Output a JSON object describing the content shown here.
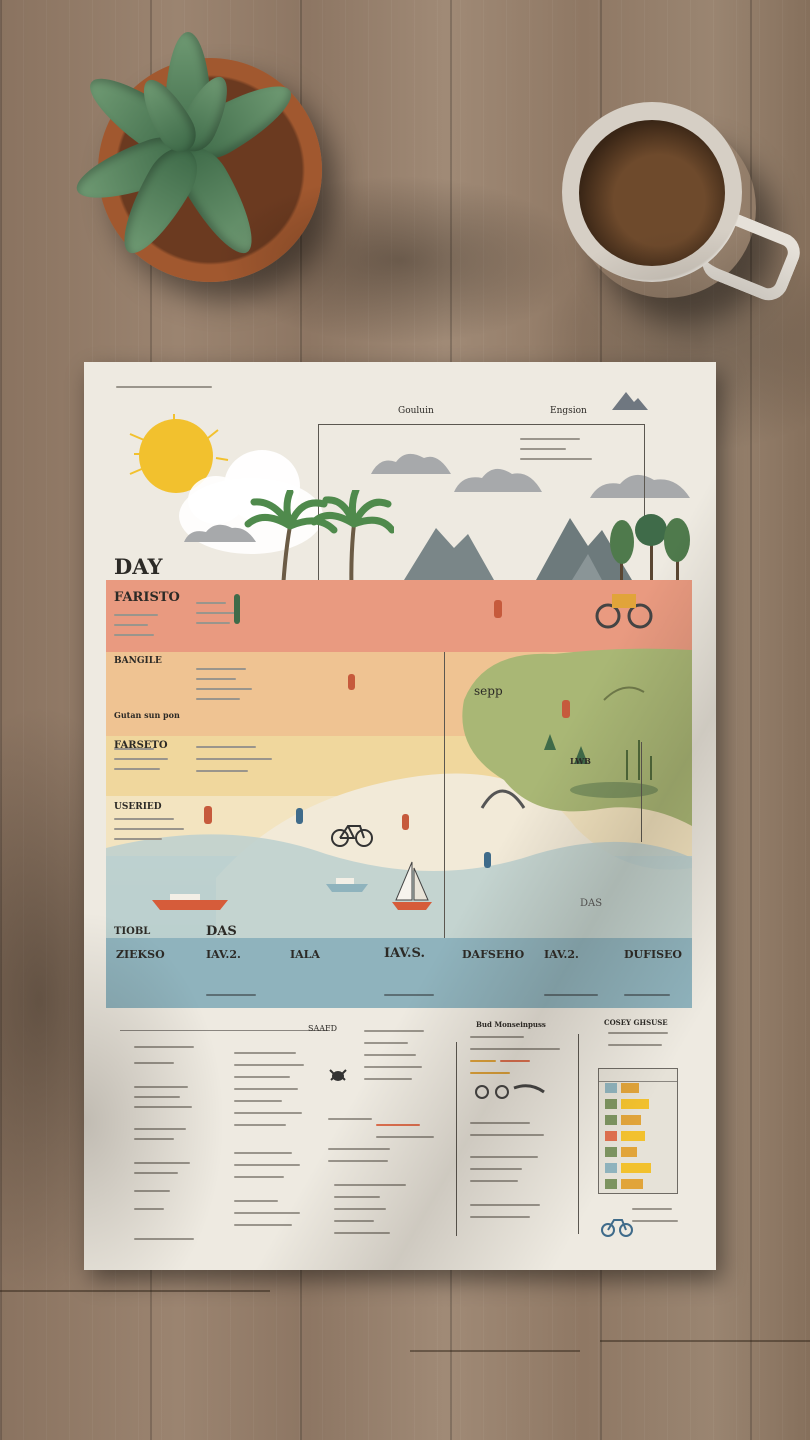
{
  "poster": {
    "day_title": "DAY",
    "zone_labels": [
      "FARISTO",
      "BANGILE",
      "Gutan sun pon",
      "FARSETO",
      "USERIED"
    ],
    "header_labels": [
      "Gouluin",
      "Engsion"
    ],
    "map_labels": [
      "sepp",
      "LWB",
      "DAS"
    ],
    "bottom_labels": [
      "TIOBL",
      "DAS",
      "ZIEKSO",
      "IAV.2.",
      "IALA",
      "IAV.S.",
      "DAFSEHO",
      "IAV.2.",
      "DUFISEO"
    ],
    "schedule_labels": [
      "SAAFD",
      "Bud Monseinpuss",
      "COSEY GHSUSE"
    ]
  },
  "palette": {
    "sun": "#f2c12e",
    "salmon": "#e99a80",
    "peach": "#efc392",
    "sand": "#f0d79d",
    "green": "#a9b775",
    "water": "#bcd0cf",
    "slate": "#8fb3bd"
  }
}
